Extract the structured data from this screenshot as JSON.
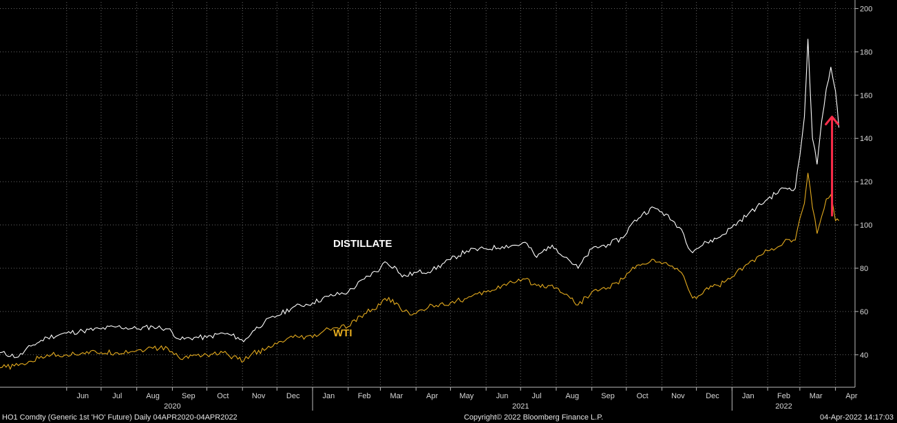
{
  "chart_data": {
    "type": "line",
    "ylim": [
      25,
      203
    ],
    "y_ticks": [
      40,
      60,
      80,
      100,
      120,
      140,
      160,
      180,
      200
    ],
    "grid": true,
    "y_axis_side": "right",
    "x_month_labels": [
      "Jun",
      "Jul",
      "Aug",
      "Sep",
      "Oct",
      "Nov",
      "Dec",
      "Jan",
      "Feb",
      "Mar",
      "Apr",
      "May",
      "Jun",
      "Jul",
      "Aug",
      "Sep",
      "Oct",
      "Nov",
      "Dec",
      "Jan",
      "Feb",
      "Mar",
      "Apr"
    ],
    "x_month_values": [
      "2020-06",
      "2020-07",
      "2020-08",
      "2020-09",
      "2020-10",
      "2020-11",
      "2020-12",
      "2021-01",
      "2021-02",
      "2021-03",
      "2021-04",
      "2021-05",
      "2021-06",
      "2021-07",
      "2021-08",
      "2021-09",
      "2021-10",
      "2021-11",
      "2021-12",
      "2022-01",
      "2022-02",
      "2022-03",
      "2022-04"
    ],
    "year_labels": [
      "2020",
      "2021",
      "2022"
    ],
    "annotation": {
      "type": "arrow",
      "color": "#ff2d4a",
      "from": [
        "2022-03-29",
        104
      ],
      "to": [
        "2022-03-29",
        150
      ]
    },
    "series": [
      {
        "name": "DISTILLATE",
        "color": "#ffffff",
        "points": [
          [
            "2020-04-04",
            41
          ],
          [
            "2020-04-20",
            39
          ],
          [
            "2020-05-01",
            44
          ],
          [
            "2020-05-15",
            48
          ],
          [
            "2020-06-01",
            50
          ],
          [
            "2020-06-15",
            51
          ],
          [
            "2020-07-01",
            52
          ],
          [
            "2020-07-15",
            53
          ],
          [
            "2020-08-01",
            52
          ],
          [
            "2020-08-15",
            53
          ],
          [
            "2020-08-28",
            52
          ],
          [
            "2020-09-08",
            47
          ],
          [
            "2020-09-20",
            48
          ],
          [
            "2020-10-01",
            48
          ],
          [
            "2020-10-15",
            50
          ],
          [
            "2020-10-28",
            48
          ],
          [
            "2020-11-02",
            46
          ],
          [
            "2020-11-10",
            51
          ],
          [
            "2020-11-20",
            55
          ],
          [
            "2020-12-01",
            58
          ],
          [
            "2020-12-15",
            62
          ],
          [
            "2021-01-01",
            64
          ],
          [
            "2021-01-15",
            67
          ],
          [
            "2021-02-01",
            69
          ],
          [
            "2021-02-15",
            75
          ],
          [
            "2021-03-01",
            80
          ],
          [
            "2021-03-05",
            83
          ],
          [
            "2021-03-15",
            80
          ],
          [
            "2021-03-20",
            76
          ],
          [
            "2021-04-01",
            78
          ],
          [
            "2021-04-15",
            79
          ],
          [
            "2021-05-01",
            84
          ],
          [
            "2021-05-15",
            88
          ],
          [
            "2021-06-01",
            89
          ],
          [
            "2021-06-15",
            90
          ],
          [
            "2021-07-01",
            91
          ],
          [
            "2021-07-05",
            92
          ],
          [
            "2021-07-15",
            85
          ],
          [
            "2021-07-25",
            90
          ],
          [
            "2021-08-01",
            89
          ],
          [
            "2021-08-10",
            85
          ],
          [
            "2021-08-20",
            80
          ],
          [
            "2021-09-01",
            89
          ],
          [
            "2021-09-15",
            91
          ],
          [
            "2021-09-28",
            94
          ],
          [
            "2021-10-05",
            100
          ],
          [
            "2021-10-15",
            105
          ],
          [
            "2021-10-25",
            108
          ],
          [
            "2021-11-01",
            106
          ],
          [
            "2021-11-10",
            102
          ],
          [
            "2021-11-18",
            98
          ],
          [
            "2021-11-26",
            88
          ],
          [
            "2021-12-01",
            89
          ],
          [
            "2021-12-10",
            92
          ],
          [
            "2021-12-20",
            94
          ],
          [
            "2022-01-01",
            99
          ],
          [
            "2022-01-15",
            105
          ],
          [
            "2022-02-01",
            112
          ],
          [
            "2022-02-15",
            117
          ],
          [
            "2022-02-25",
            117
          ],
          [
            "2022-03-01",
            132
          ],
          [
            "2022-03-05",
            150
          ],
          [
            "2022-03-08",
            186
          ],
          [
            "2022-03-12",
            140
          ],
          [
            "2022-03-16",
            128
          ],
          [
            "2022-03-20",
            148
          ],
          [
            "2022-03-24",
            163
          ],
          [
            "2022-03-28",
            173
          ],
          [
            "2022-04-01",
            162
          ],
          [
            "2022-04-04",
            145
          ]
        ]
      },
      {
        "name": "WTI",
        "color": "#e6ac1e",
        "points": [
          [
            "2020-04-04",
            34
          ],
          [
            "2020-04-20",
            35
          ],
          [
            "2020-05-01",
            37
          ],
          [
            "2020-05-15",
            40
          ],
          [
            "2020-06-01",
            40
          ],
          [
            "2020-06-15",
            41
          ],
          [
            "2020-07-01",
            41
          ],
          [
            "2020-07-15",
            41
          ],
          [
            "2020-08-01",
            42
          ],
          [
            "2020-08-15",
            43
          ],
          [
            "2020-08-28",
            43
          ],
          [
            "2020-09-08",
            38
          ],
          [
            "2020-09-20",
            40
          ],
          [
            "2020-10-01",
            40
          ],
          [
            "2020-10-15",
            41
          ],
          [
            "2020-10-28",
            38
          ],
          [
            "2020-11-02",
            37
          ],
          [
            "2020-11-10",
            41
          ],
          [
            "2020-11-20",
            42
          ],
          [
            "2020-12-01",
            45
          ],
          [
            "2020-12-15",
            48
          ],
          [
            "2021-01-01",
            48
          ],
          [
            "2021-01-15",
            52
          ],
          [
            "2021-02-01",
            53
          ],
          [
            "2021-02-15",
            59
          ],
          [
            "2021-03-01",
            63
          ],
          [
            "2021-03-05",
            66
          ],
          [
            "2021-03-15",
            64
          ],
          [
            "2021-03-20",
            60
          ],
          [
            "2021-04-01",
            59
          ],
          [
            "2021-04-15",
            63
          ],
          [
            "2021-05-01",
            64
          ],
          [
            "2021-05-15",
            66
          ],
          [
            "2021-06-01",
            69
          ],
          [
            "2021-06-15",
            72
          ],
          [
            "2021-07-01",
            74
          ],
          [
            "2021-07-05",
            75
          ],
          [
            "2021-07-15",
            72
          ],
          [
            "2021-07-25",
            72
          ],
          [
            "2021-08-01",
            71
          ],
          [
            "2021-08-10",
            68
          ],
          [
            "2021-08-20",
            63
          ],
          [
            "2021-09-01",
            69
          ],
          [
            "2021-09-15",
            71
          ],
          [
            "2021-09-28",
            75
          ],
          [
            "2021-10-05",
            79
          ],
          [
            "2021-10-15",
            82
          ],
          [
            "2021-10-25",
            84
          ],
          [
            "2021-11-01",
            82
          ],
          [
            "2021-11-10",
            81
          ],
          [
            "2021-11-18",
            78
          ],
          [
            "2021-11-26",
            68
          ],
          [
            "2021-12-01",
            66
          ],
          [
            "2021-12-10",
            71
          ],
          [
            "2021-12-20",
            72
          ],
          [
            "2022-01-01",
            76
          ],
          [
            "2022-01-15",
            82
          ],
          [
            "2022-02-01",
            88
          ],
          [
            "2022-02-15",
            92
          ],
          [
            "2022-02-25",
            93
          ],
          [
            "2022-03-01",
            103
          ],
          [
            "2022-03-05",
            110
          ],
          [
            "2022-03-08",
            124
          ],
          [
            "2022-03-12",
            108
          ],
          [
            "2022-03-16",
            96
          ],
          [
            "2022-03-20",
            104
          ],
          [
            "2022-03-24",
            112
          ],
          [
            "2022-03-28",
            114
          ],
          [
            "2022-04-01",
            102
          ],
          [
            "2022-04-04",
            102
          ]
        ]
      }
    ]
  },
  "footer": {
    "left": "HO1 Comdty (Generic 1st 'HO' Future)  Daily 04APR2020-04APR2022",
    "center": "Copyright© 2022 Bloomberg Finance L.P.",
    "right": "04-Apr-2022 14:17:03"
  }
}
